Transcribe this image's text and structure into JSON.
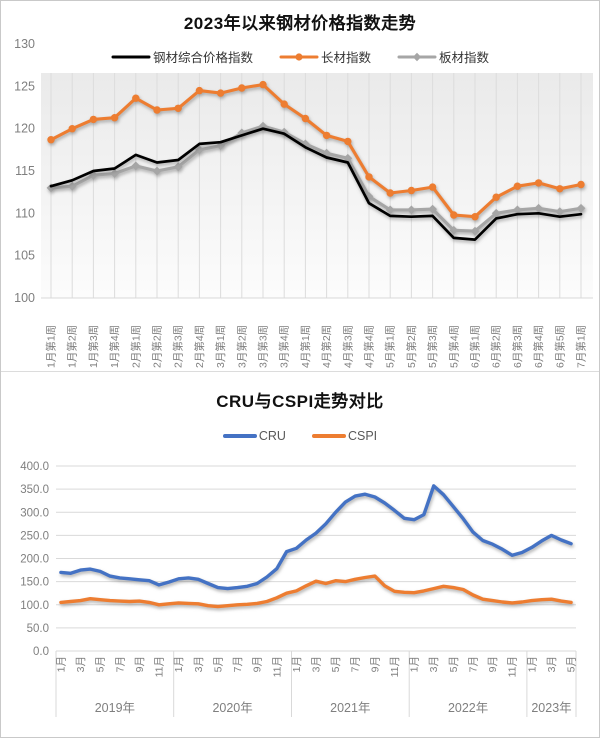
{
  "colors": {
    "composite_black": "#000000",
    "long_orange": "#ED7D31",
    "sheet_gray": "#A6A6A6",
    "cru_blue": "#4472C4",
    "cspi_orange": "#ED7D31",
    "axis_text": "#7F7F7F",
    "gridline": "#D9D9D9"
  },
  "chart_data": [
    {
      "type": "line",
      "title": "2023年以来钢材价格指数走势",
      "legend_position": "top",
      "grid": "vertical",
      "ylim": [
        100,
        130
      ],
      "ytick_labels": [
        "100",
        "105",
        "110",
        "115",
        "120",
        "125",
        "130"
      ],
      "categories": [
        "1月第1周",
        "1月第2周",
        "1月第3周",
        "1月第4周",
        "2月第1周",
        "2月第2周",
        "2月第3周",
        "2月第4周",
        "3月第1周",
        "3月第2周",
        "3月第3周",
        "3月第4周",
        "4月第1周",
        "4月第2周",
        "4月第3周",
        "4月第4周",
        "5月第1周",
        "5月第2周",
        "5月第3周",
        "5月第4周",
        "6月第1周",
        "6月第2周",
        "6月第3周",
        "6月第4周",
        "6月第5周",
        "7月第1周"
      ],
      "series": [
        {
          "name": "钢材综合价格指数",
          "color": "#000000",
          "marker": "none",
          "values": [
            113.2,
            113.9,
            115.0,
            115.3,
            116.9,
            116.0,
            116.3,
            118.2,
            118.4,
            119.2,
            120.0,
            119.4,
            117.8,
            116.6,
            116.0,
            111.2,
            109.7,
            109.6,
            109.7,
            107.1,
            106.9,
            109.4,
            109.9,
            110.0,
            109.6,
            109.9
          ]
        },
        {
          "name": "长材指数",
          "color": "#ED7D31",
          "marker": "circle",
          "values": [
            118.7,
            120.0,
            121.1,
            121.3,
            123.6,
            122.2,
            122.4,
            124.5,
            124.2,
            124.8,
            125.2,
            122.9,
            121.2,
            119.2,
            118.5,
            114.3,
            112.4,
            112.7,
            113.1,
            109.8,
            109.6,
            111.9,
            113.2,
            113.6,
            112.9,
            113.4
          ]
        },
        {
          "name": "板材指数",
          "color": "#A6A6A6",
          "marker": "diamond",
          "values": [
            113.0,
            113.2,
            114.5,
            114.7,
            115.6,
            115.0,
            115.5,
            117.5,
            118.0,
            119.5,
            120.3,
            119.6,
            118.2,
            117.1,
            116.5,
            112.0,
            110.4,
            110.4,
            110.5,
            108.0,
            107.9,
            110.0,
            110.4,
            110.6,
            110.2,
            110.6
          ]
        }
      ]
    },
    {
      "type": "line",
      "title": "CRU与CSPI走势对比",
      "legend_position": "top",
      "grid": "horizontal",
      "ylim": [
        0,
        400
      ],
      "ytick_labels": [
        "400.0",
        "350.0",
        "300.0",
        "250.0",
        "200.0",
        "150.0",
        "100.0",
        "50.0",
        "0.0"
      ],
      "x_axis_years": [
        {
          "label": "2019年",
          "months": 12,
          "tick_labels": [
            "1月",
            "3月",
            "5月",
            "7月",
            "9月",
            "11月"
          ]
        },
        {
          "label": "2020年",
          "months": 12,
          "tick_labels": [
            "1月",
            "3月",
            "5月",
            "7月",
            "9月",
            "11月"
          ]
        },
        {
          "label": "2021年",
          "months": 12,
          "tick_labels": [
            "1月",
            "3月",
            "5月",
            "7月",
            "9月",
            "11月"
          ]
        },
        {
          "label": "2022年",
          "months": 12,
          "tick_labels": [
            "1月",
            "3月",
            "5月",
            "7月",
            "9月",
            "11月"
          ]
        },
        {
          "label": "2023年",
          "months": 5,
          "tick_labels": [
            "1月",
            "3月",
            "5月"
          ]
        }
      ],
      "series": [
        {
          "name": "CRU",
          "color": "#4472C4",
          "marker": "none",
          "values": [
            170,
            168,
            175,
            177,
            172,
            162,
            158,
            156,
            154,
            152,
            143,
            149,
            156,
            158,
            155,
            146,
            137,
            135,
            137,
            140,
            146,
            160,
            178,
            215,
            222,
            240,
            255,
            275,
            300,
            322,
            335,
            339,
            333,
            320,
            304,
            287,
            284,
            295,
            357,
            338,
            312,
            286,
            257,
            239,
            231,
            220,
            207,
            213,
            224,
            238,
            250,
            240,
            232
          ]
        },
        {
          "name": "CSPI",
          "color": "#ED7D31",
          "marker": "none",
          "values": [
            105,
            107,
            109,
            113,
            111,
            109,
            108,
            107,
            108,
            105,
            100,
            102,
            104,
            103,
            102,
            98,
            96,
            98,
            100,
            101,
            103,
            107,
            115,
            125,
            130,
            141,
            151,
            146,
            152,
            150,
            155,
            159,
            162,
            141,
            129,
            127,
            126,
            130,
            135,
            140,
            137,
            133,
            121,
            112,
            109,
            106,
            104,
            106,
            109,
            111,
            112,
            108,
            105
          ]
        }
      ]
    }
  ]
}
